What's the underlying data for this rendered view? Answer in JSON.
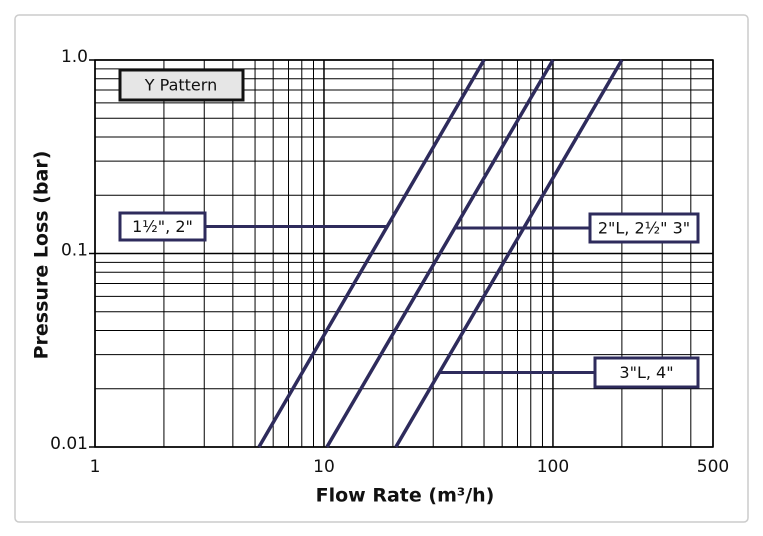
{
  "chart_data": {
    "type": "line",
    "subtitle": "Y Pattern",
    "xlabel": "Flow Rate (m³/h)",
    "ylabel": "Pressure Loss (bar)",
    "xscale": "log",
    "yscale": "log",
    "grid": true,
    "xlim": [
      1,
      500
    ],
    "ylim": [
      0.01,
      1
    ],
    "xticks": [
      1,
      10,
      100,
      500
    ],
    "yticks": [
      0.01,
      0.1,
      {
        "value": 1,
        "label": "1.0"
      }
    ],
    "series": [
      {
        "name": "1½\", 2\"",
        "color": "#2e2b5c",
        "x": [
          5.2,
          50
        ],
        "values": [
          0.01,
          1
        ]
      },
      {
        "name": "2\"L, 2½\" 3\"",
        "color": "#2e2b5c",
        "x": [
          10.3,
          100
        ],
        "values": [
          0.01,
          1
        ]
      },
      {
        "name": "3\"L, 4\"",
        "color": "#2e2b5c",
        "x": [
          20.6,
          200
        ],
        "values": [
          0.01,
          1
        ]
      }
    ]
  }
}
